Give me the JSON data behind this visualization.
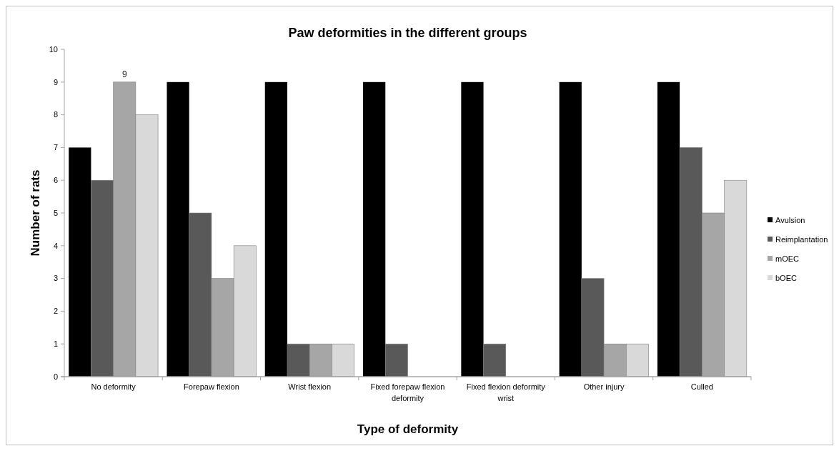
{
  "chart_data": {
    "type": "bar",
    "title": "Paw deformities in the different groups",
    "xlabel": "Type of deformity",
    "ylabel": "Number of rats",
    "categories": [
      "No deformity",
      "Forepaw flexion",
      "Wrist flexion",
      "Fixed forepaw flexion deformity",
      "Fixed flexion deformity wrist",
      "Other injury",
      "Culled"
    ],
    "series": [
      {
        "name": "Avulsion",
        "color": "#000000",
        "values": [
          7,
          9,
          9,
          9,
          9,
          9,
          9
        ]
      },
      {
        "name": "Reimplantation",
        "color": "#595959",
        "values": [
          6,
          5,
          1,
          1,
          1,
          3,
          7
        ]
      },
      {
        "name": "mOEC",
        "color": "#a6a6a6",
        "values": [
          9,
          3,
          1,
          0,
          0,
          1,
          5
        ],
        "value_labels": [
          "9",
          null,
          null,
          null,
          null,
          null,
          null
        ]
      },
      {
        "name": "bOEC",
        "color": "#d9d9d9",
        "values": [
          8,
          4,
          1,
          0,
          0,
          1,
          6
        ]
      }
    ],
    "ylim": [
      0,
      10
    ],
    "yticks": [
      0,
      1,
      2,
      3,
      4,
      5,
      6,
      7,
      8,
      9,
      10
    ],
    "grid": false,
    "legend": "right"
  }
}
